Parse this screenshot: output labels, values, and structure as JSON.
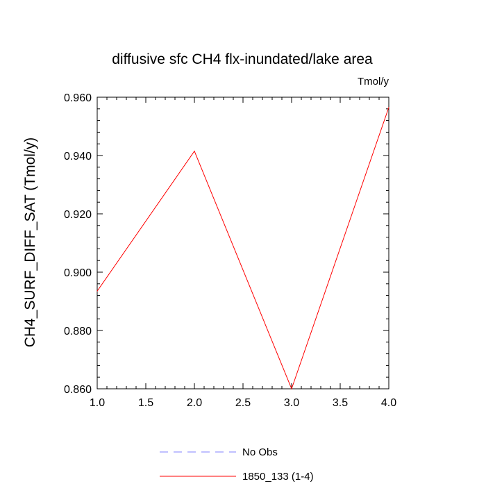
{
  "chart_data": {
    "type": "line",
    "title": "diffusive sfc CH4 flx-inundated/lake area",
    "units_label": "Tmol/y",
    "xlabel": "",
    "ylabel": "CH4_SURF_DIFF_SAT  (Tmol/y)",
    "xlim": [
      1.0,
      4.0
    ],
    "ylim": [
      0.86,
      0.96
    ],
    "x_ticks": [
      1.0,
      1.5,
      2.0,
      2.5,
      3.0,
      3.5,
      4.0
    ],
    "x_tick_labels": [
      "1.0",
      "1.5",
      "2.0",
      "2.5",
      "3.0",
      "3.5",
      "4.0"
    ],
    "y_ticks": [
      0.86,
      0.88,
      0.9,
      0.92,
      0.94,
      0.96
    ],
    "y_tick_labels": [
      "0.860",
      "0.880",
      "0.900",
      "0.920",
      "0.940",
      "0.960"
    ],
    "grid": false,
    "legend_position": "bottom-center",
    "series": [
      {
        "name": "No Obs",
        "color": "#8080ff",
        "dash": "dashed",
        "x": [],
        "values": []
      },
      {
        "name": "1850_133 (1-4)",
        "color": "#ff0000",
        "dash": "solid",
        "x": [
          1.0,
          2.0,
          3.0,
          4.0
        ],
        "values": [
          0.8935,
          0.9415,
          0.86,
          0.9565
        ]
      }
    ]
  }
}
